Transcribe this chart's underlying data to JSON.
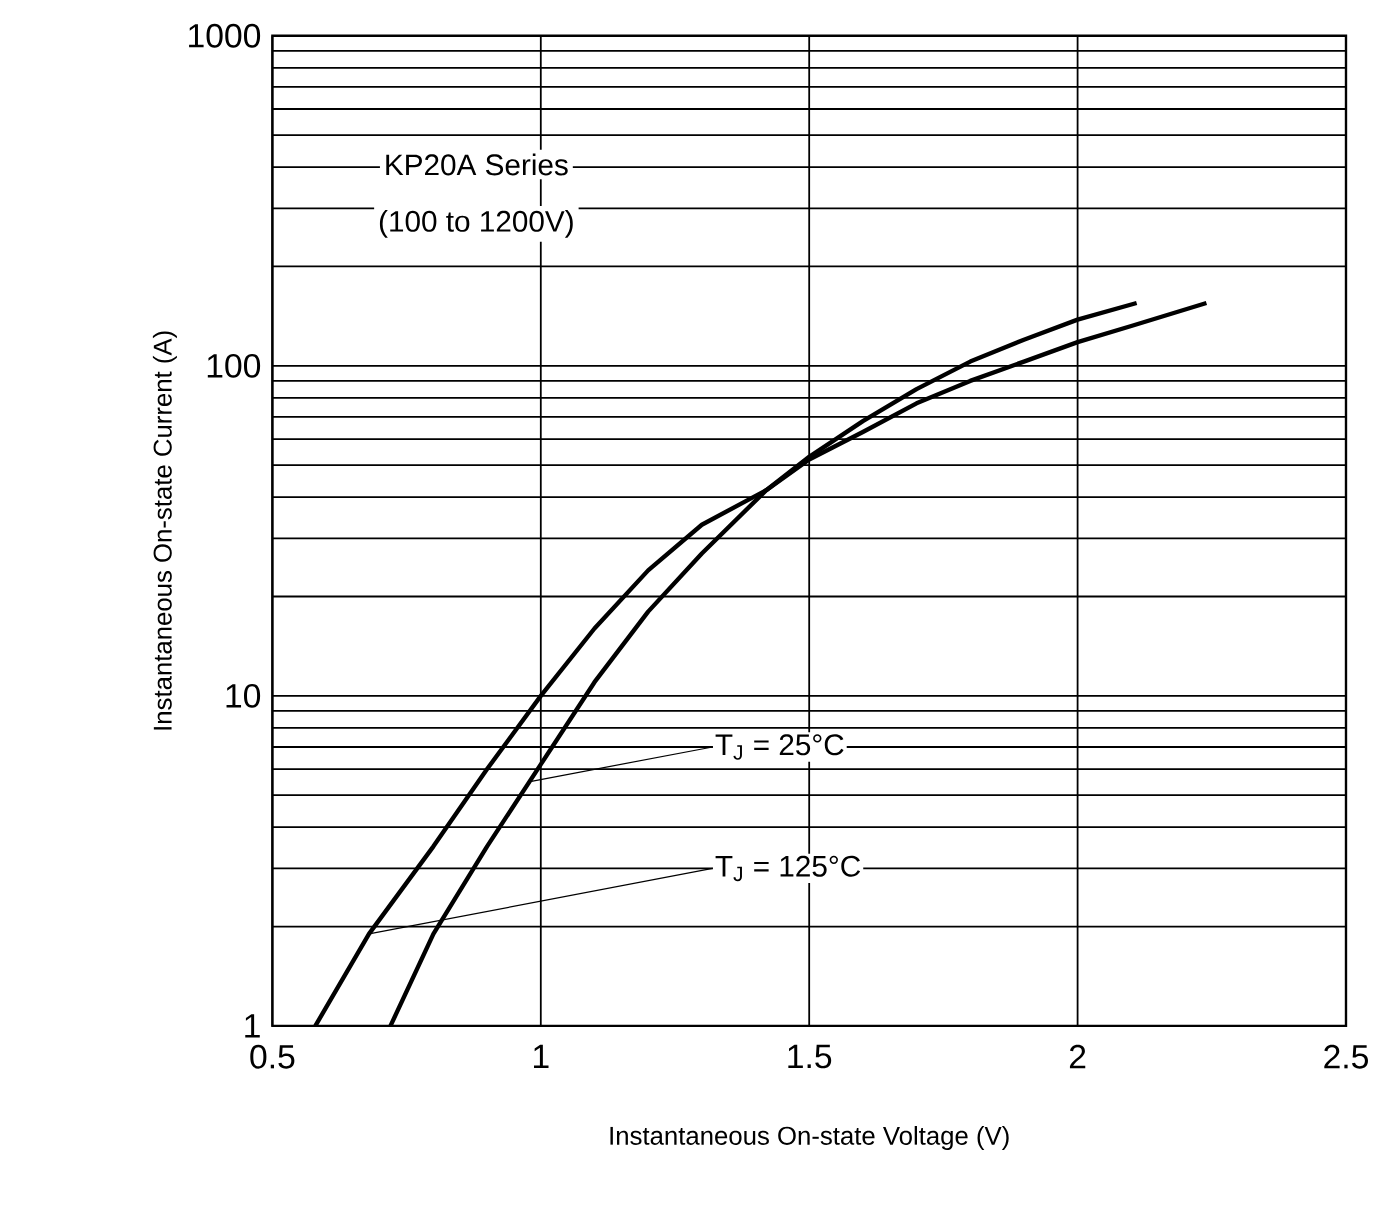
{
  "chart_data": {
    "type": "line",
    "xlabel": "Instantaneous On-state Voltage (V)",
    "ylabel": "Instantaneous On-state Current (A)",
    "log": "y",
    "grid": true,
    "marker": "none",
    "line_style": "solid",
    "xlim": [
      0.5,
      2.5
    ],
    "xticks": [
      0.5,
      1,
      1.5,
      2,
      2.5
    ],
    "ylim": [
      1,
      1000
    ],
    "yticks": [
      1,
      10,
      100,
      1000
    ],
    "series": [
      {
        "color": "#000000",
        "x": [
          0.58,
          0.68,
          0.8,
          0.9,
          1.0,
          1.1,
          1.2,
          1.3,
          1.42,
          1.5,
          1.6,
          1.7,
          1.8,
          1.9,
          2.0,
          2.1,
          2.24
        ],
        "values": [
          1,
          1.9,
          3.5,
          6,
          10,
          16,
          24,
          33,
          42,
          52,
          63,
          77,
          90,
          103,
          118,
          132,
          155
        ]
      },
      {
        "color": "#000000",
        "x": [
          0.72,
          0.8,
          0.9,
          1.0,
          1.1,
          1.2,
          1.3,
          1.42,
          1.5,
          1.6,
          1.7,
          1.8,
          1.9,
          2.0,
          2.11
        ],
        "values": [
          1,
          1.9,
          3.5,
          6.2,
          11,
          18,
          27,
          42,
          53,
          68,
          85,
          103,
          120,
          138,
          155
        ]
      }
    ],
    "annotations": [
      "KP20A Series",
      "(100 to 1200V)",
      {
        "text": "T$_{J}$ = 25°C",
        "x": 0.98,
        "y": 5.5
      },
      {
        "text": "T$_{J}$ = 125°C",
        "x": 0.68,
        "y": 1.9
      }
    ]
  }
}
